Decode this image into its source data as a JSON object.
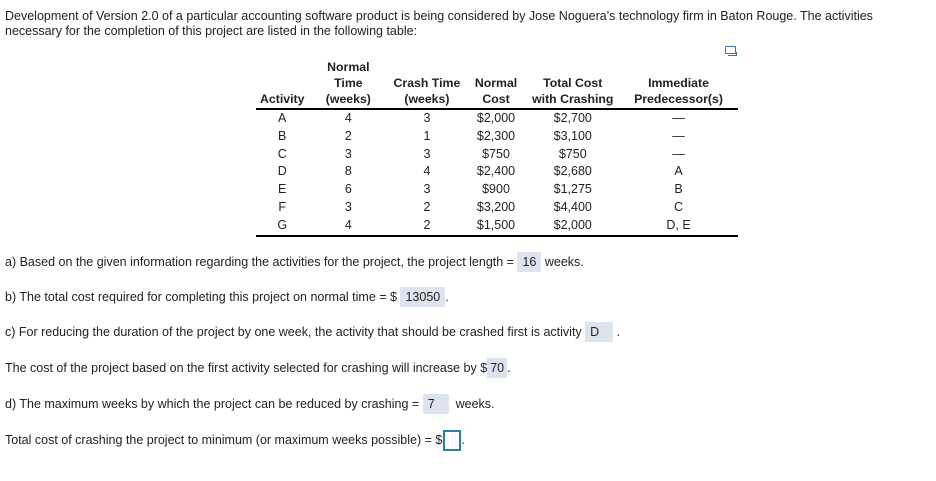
{
  "intro": "Development of Version 2.0 of a particular accounting software product is being considered by Jose Noguera's technology firm in Baton Rouge. The activities necessary for the completion of this project are listed in the following table:",
  "table": {
    "headers": [
      "Activity",
      "Normal Time (weeks)",
      "Crash Time (weeks)",
      "Normal Cost",
      "Total Cost with Crashing",
      "Immediate Predecessor(s)"
    ],
    "rows": [
      [
        "A",
        "4",
        "3",
        "$2,000",
        "$2,700",
        "—"
      ],
      [
        "B",
        "2",
        "1",
        "$2,300",
        "$3,100",
        "—"
      ],
      [
        "C",
        "3",
        "3",
        "$750",
        "$750",
        "—"
      ],
      [
        "D",
        "8",
        "4",
        "$2,400",
        "$2,680",
        "A"
      ],
      [
        "E",
        "6",
        "3",
        "$900",
        "$1,275",
        "B"
      ],
      [
        "F",
        "3",
        "2",
        "$3,200",
        "$4,400",
        "C"
      ],
      [
        "G",
        "4",
        "2",
        "$1,500",
        "$2,000",
        "D, E"
      ]
    ]
  },
  "questions": {
    "a": {
      "pre": "a) Based on the given information regarding the activities for the project, the project length = ",
      "answer": "16",
      "post": "weeks."
    },
    "b": {
      "pre": "b) The total cost required for completing this project on normal time = $",
      "answer": "13050",
      "post": "."
    },
    "c": {
      "pre": "c) For reducing the duration of the project by one week, the activity that should be crashed first is activity ",
      "answer": "D",
      "post": "."
    },
    "c2": {
      "pre": "The cost of the project based on the first activity selected for crashing will increase by $",
      "answer": "70",
      "post": "."
    },
    "d": {
      "pre": "d) The maximum weeks by which the project can be reduced by crashing = ",
      "answer": "7",
      "post": "weeks."
    },
    "d2": {
      "pre": "Total cost of crashing the project to minimum (or maximum weeks possible) = $",
      "answer": "",
      "post": "."
    }
  }
}
